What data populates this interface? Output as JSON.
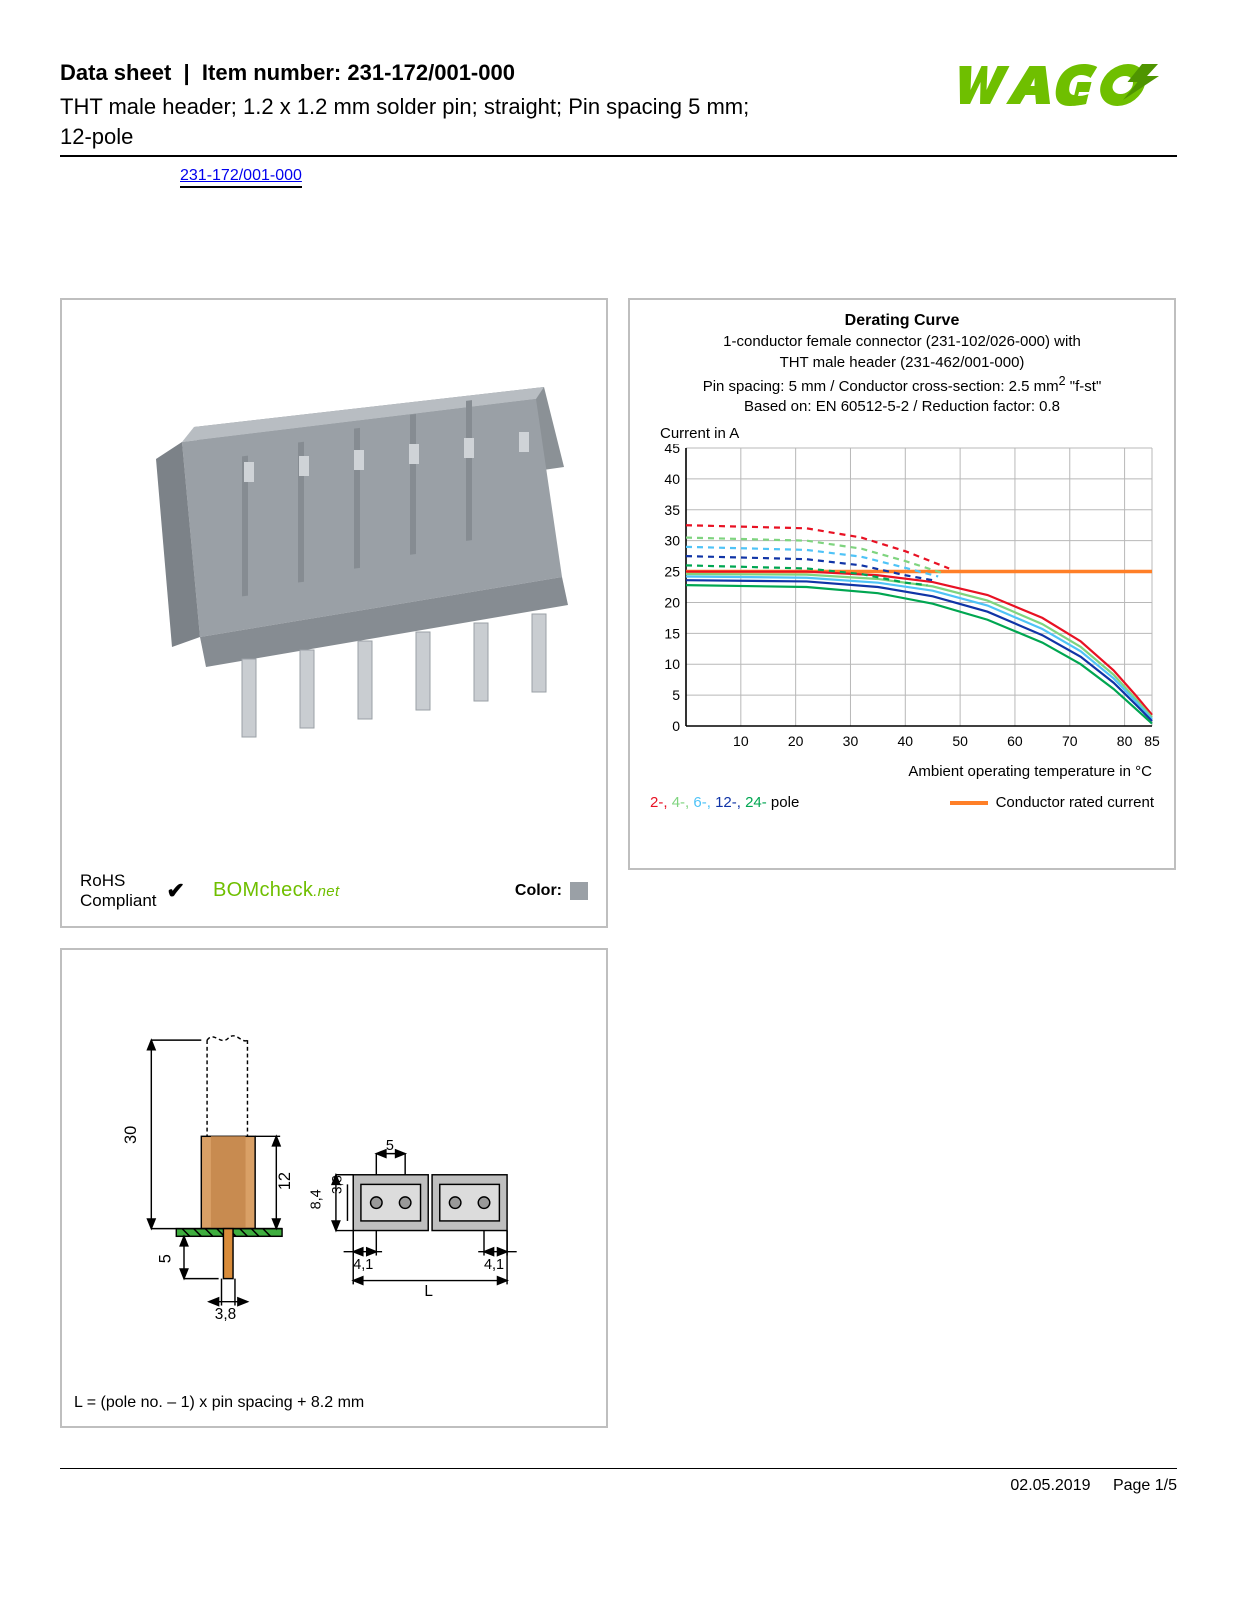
{
  "header": {
    "doc_type": "Data sheet",
    "item_label": "Item number:",
    "item_number": "231-172/001-000",
    "description": "THT male header; 1.2 x 1.2 mm solder pin; straight; Pin spacing 5 mm; 12-pole",
    "part_link": "231-172/001-000",
    "brand": "WAGO",
    "brand_color": "#6fbf00",
    "brand_accent": "#4f9500"
  },
  "product_panel": {
    "body_color": "#9aa0a6",
    "body_shadow": "#7c8288",
    "body_light": "#b8bdc2",
    "pin_color": "#c9cdd1",
    "rohs_label": "RoHS",
    "compliant_label": "Compliant",
    "checkmark": "✔",
    "bomcheck": "BOMcheck",
    "bomcheck_suffix": ".net",
    "color_label": "Color:",
    "color_swatch": "#9aa0a6"
  },
  "chart": {
    "title": "Derating Curve",
    "subtitle_1": "1-conductor female connector (231-102/026-000) with",
    "subtitle_2": "THT male header (231-462/001-000)",
    "subtitle_3_a": "Pin spacing: 5 mm / Conductor cross-section: 2.5 mm",
    "subtitle_3_sup": "2",
    "subtitle_3_b": " \"f-st\"",
    "subtitle_4": "Based on: EN 60512-5-2 / Reduction factor: 0.8",
    "y_axis_label": "Current in A",
    "x_axis_label": "Ambient operating temperature in °C",
    "xlim": [
      0,
      85
    ],
    "ylim": [
      0,
      45
    ],
    "xticks": [
      10,
      20,
      30,
      40,
      50,
      60,
      70,
      80,
      85
    ],
    "yticks": [
      0,
      5,
      10,
      15,
      20,
      25,
      30,
      35,
      40,
      45
    ],
    "grid_color": "#b8b8b8",
    "axis_color": "#000000",
    "background": "#ffffff",
    "rated_current": {
      "color": "#ff7f27",
      "width": 3.5,
      "points": [
        [
          0,
          25
        ],
        [
          85,
          25
        ]
      ]
    },
    "series": [
      {
        "label": "2-",
        "color": "#e81123",
        "width": 2.2,
        "solid": [
          [
            0,
            25
          ],
          [
            22,
            25
          ],
          [
            35,
            24.4
          ],
          [
            45,
            23.3
          ],
          [
            55,
            21.2
          ],
          [
            65,
            17.5
          ],
          [
            72,
            13.7
          ],
          [
            78,
            9.0
          ],
          [
            82,
            5.0
          ],
          [
            85,
            1.8
          ]
        ],
        "dashed": [
          [
            0,
            32.5
          ],
          [
            22,
            32.0
          ],
          [
            32,
            30.5
          ],
          [
            40,
            28.3
          ],
          [
            48,
            25.5
          ]
        ]
      },
      {
        "label": "4-",
        "color": "#7fd47f",
        "width": 2.2,
        "solid": [
          [
            0,
            24.6
          ],
          [
            22,
            24.5
          ],
          [
            35,
            23.8
          ],
          [
            45,
            22.6
          ],
          [
            55,
            20.3
          ],
          [
            65,
            16.5
          ],
          [
            72,
            12.8
          ],
          [
            78,
            8.3
          ],
          [
            82,
            4.4
          ],
          [
            85,
            1.4
          ]
        ],
        "dashed": [
          [
            0,
            30.5
          ],
          [
            22,
            30.0
          ],
          [
            32,
            28.7
          ],
          [
            40,
            26.7
          ],
          [
            47,
            24.7
          ]
        ]
      },
      {
        "label": "6-",
        "color": "#4fc3f7",
        "width": 2.2,
        "solid": [
          [
            0,
            24.2
          ],
          [
            22,
            24.0
          ],
          [
            35,
            23.2
          ],
          [
            45,
            21.9
          ],
          [
            55,
            19.5
          ],
          [
            65,
            15.7
          ],
          [
            72,
            12.1
          ],
          [
            78,
            7.7
          ],
          [
            82,
            4.0
          ],
          [
            85,
            1.1
          ]
        ],
        "dashed": [
          [
            0,
            29.0
          ],
          [
            22,
            28.5
          ],
          [
            32,
            27.4
          ],
          [
            40,
            25.6
          ],
          [
            46,
            24.2
          ]
        ]
      },
      {
        "label": "12-",
        "color": "#1034a6",
        "width": 2.2,
        "solid": [
          [
            0,
            23.6
          ],
          [
            22,
            23.4
          ],
          [
            35,
            22.5
          ],
          [
            45,
            21.0
          ],
          [
            55,
            18.5
          ],
          [
            65,
            14.7
          ],
          [
            72,
            11.2
          ],
          [
            78,
            7.0
          ],
          [
            82,
            3.5
          ],
          [
            85,
            0.8
          ]
        ],
        "dashed": [
          [
            0,
            27.5
          ],
          [
            22,
            27.0
          ],
          [
            32,
            26.0
          ],
          [
            40,
            24.4
          ],
          [
            45,
            23.6
          ]
        ]
      },
      {
        "label": "24-",
        "color": "#00a651",
        "width": 2.2,
        "solid": [
          [
            0,
            22.8
          ],
          [
            22,
            22.5
          ],
          [
            35,
            21.5
          ],
          [
            45,
            19.8
          ],
          [
            55,
            17.2
          ],
          [
            65,
            13.5
          ],
          [
            72,
            10.0
          ],
          [
            78,
            6.0
          ],
          [
            82,
            2.8
          ],
          [
            85,
            0.4
          ]
        ],
        "dashed": [
          [
            0,
            26.0
          ],
          [
            22,
            25.5
          ],
          [
            32,
            24.6
          ],
          [
            40,
            23.2
          ],
          [
            44,
            22.8
          ]
        ]
      }
    ],
    "legend_poles_suffix": " pole",
    "legend_rated": "Conductor rated current"
  },
  "dims_panel": {
    "formula": "L = (pole no. – 1) x pin spacing + 8.2 mm",
    "values": {
      "h_total": "30",
      "h_body": "12",
      "pin_len": "5",
      "pin_w": "3,8",
      "top_h": "8,4",
      "top_inset": "3,8",
      "pitch": "5",
      "side": "4,1",
      "L": "L"
    },
    "line_color": "#000000",
    "body_fill": "#d9a066",
    "pcb_color": "#3fae3f",
    "pin_color": "#d98c3a"
  },
  "footer": {
    "date": "02.05.2019",
    "page": "Page 1/5"
  }
}
